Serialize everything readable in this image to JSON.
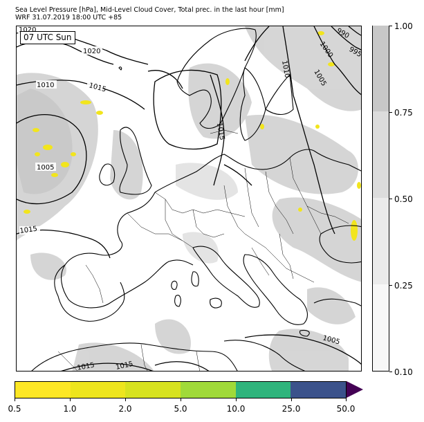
{
  "title_line1": "Sea Level Pressure [hPa], Mid-Level Cloud Cover, Total prec. in the last hour [mm]",
  "title_line2": "WRF 31.07.2019 18:00 UTC +85",
  "time_label": "07 UTC Sun",
  "isobar_labels": [
    "1020",
    "1020",
    "1015",
    "1010",
    "1005",
    "1015",
    "1015",
    "1010",
    "990",
    "995",
    "1000",
    "1005",
    "1005",
    "1015",
    "1015"
  ],
  "cloud_colorbar": {
    "ticks": [
      "0.10",
      "0.25",
      "0.50",
      "0.75",
      "1.00"
    ],
    "colors": [
      "#f7f7f7",
      "#ebebeb",
      "#dcdcdc",
      "#c8c8c8"
    ]
  },
  "precip_colorbar": {
    "ticks": [
      "0.5",
      "1.0",
      "2.0",
      "5.0",
      "10.0",
      "25.0",
      "50.0"
    ],
    "colors": [
      "#fde725",
      "#eee51d",
      "#d7e21f",
      "#a0da39",
      "#2fb47c",
      "#3b528b"
    ],
    "extend_color": "#440154"
  }
}
